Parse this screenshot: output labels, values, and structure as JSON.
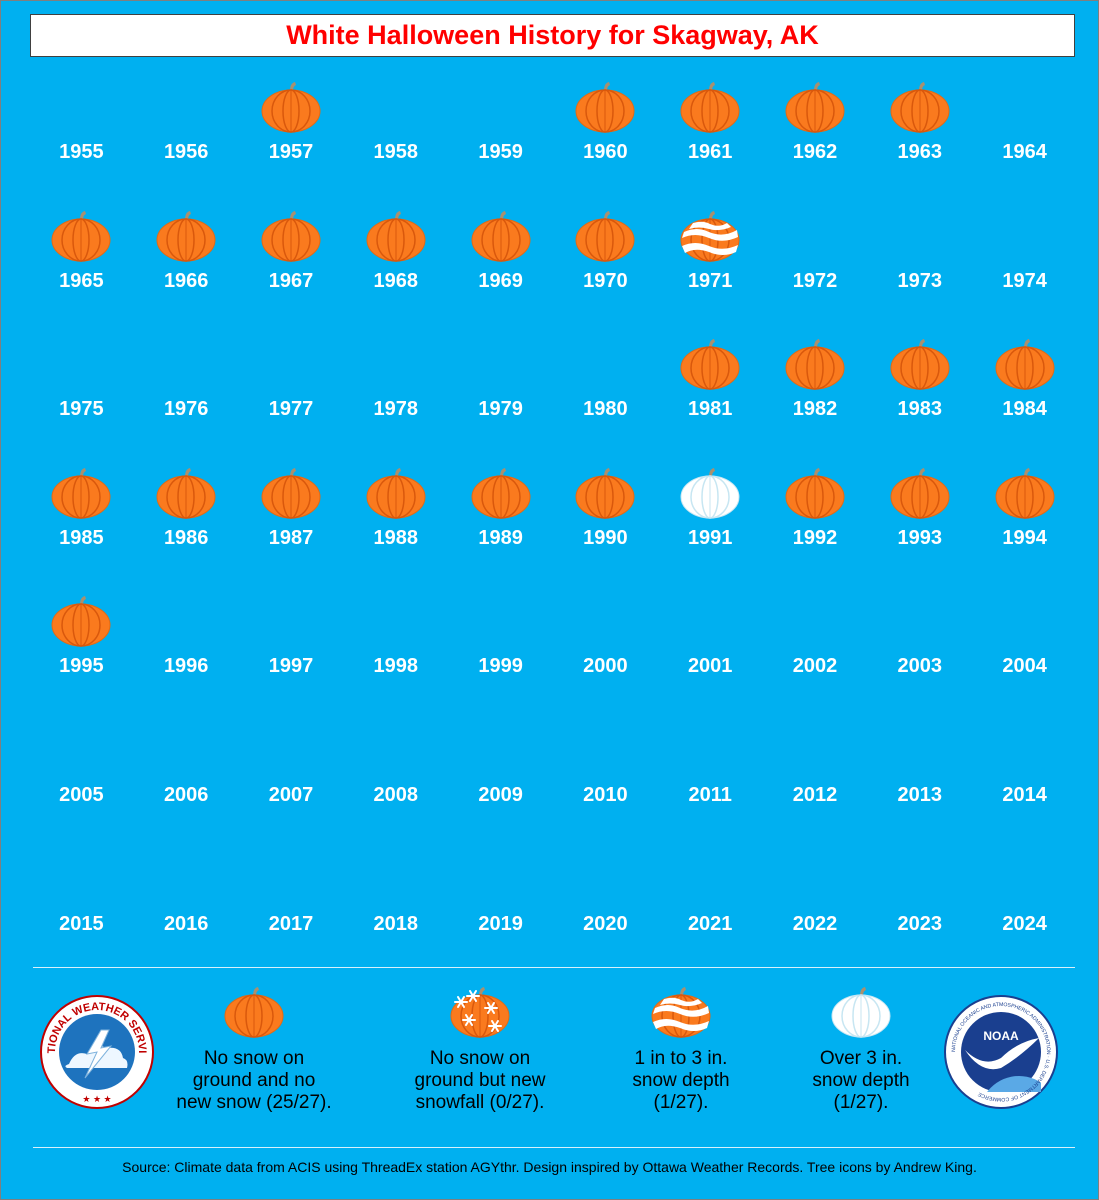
{
  "title": "White Halloween History for Skagway, AK",
  "chart_data": {
    "type": "table",
    "title": "White Halloween History for Skagway, AK",
    "category_key": {
      "no_snow": "No snow on ground and no new snow (25/27).",
      "new_snowfall": "No snow on ground but new snowfall (0/27).",
      "depth_1_3": "1 in to 3 in. snow depth (1/27).",
      "depth_over_3": "Over 3 in. snow depth (1/27)."
    },
    "years": [
      {
        "year": "1955",
        "category": null
      },
      {
        "year": "1956",
        "category": null
      },
      {
        "year": "1957",
        "category": "no_snow"
      },
      {
        "year": "1958",
        "category": null
      },
      {
        "year": "1959",
        "category": null
      },
      {
        "year": "1960",
        "category": "no_snow"
      },
      {
        "year": "1961",
        "category": "no_snow"
      },
      {
        "year": "1962",
        "category": "no_snow"
      },
      {
        "year": "1963",
        "category": "no_snow"
      },
      {
        "year": "1964",
        "category": null
      },
      {
        "year": "1965",
        "category": "no_snow"
      },
      {
        "year": "1966",
        "category": "no_snow"
      },
      {
        "year": "1967",
        "category": "no_snow"
      },
      {
        "year": "1968",
        "category": "no_snow"
      },
      {
        "year": "1969",
        "category": "no_snow"
      },
      {
        "year": "1970",
        "category": "no_snow"
      },
      {
        "year": "1971",
        "category": "depth_1_3"
      },
      {
        "year": "1972",
        "category": null
      },
      {
        "year": "1973",
        "category": null
      },
      {
        "year": "1974",
        "category": null
      },
      {
        "year": "1975",
        "category": null
      },
      {
        "year": "1976",
        "category": null
      },
      {
        "year": "1977",
        "category": null
      },
      {
        "year": "1978",
        "category": null
      },
      {
        "year": "1979",
        "category": null
      },
      {
        "year": "1980",
        "category": null
      },
      {
        "year": "1981",
        "category": "no_snow"
      },
      {
        "year": "1982",
        "category": "no_snow"
      },
      {
        "year": "1983",
        "category": "no_snow"
      },
      {
        "year": "1984",
        "category": "no_snow"
      },
      {
        "year": "1985",
        "category": "no_snow"
      },
      {
        "year": "1986",
        "category": "no_snow"
      },
      {
        "year": "1987",
        "category": "no_snow"
      },
      {
        "year": "1988",
        "category": "no_snow"
      },
      {
        "year": "1989",
        "category": "no_snow"
      },
      {
        "year": "1990",
        "category": "no_snow"
      },
      {
        "year": "1991",
        "category": "depth_over_3"
      },
      {
        "year": "1992",
        "category": "no_snow"
      },
      {
        "year": "1993",
        "category": "no_snow"
      },
      {
        "year": "1994",
        "category": "no_snow"
      },
      {
        "year": "1995",
        "category": "no_snow"
      },
      {
        "year": "1996",
        "category": null
      },
      {
        "year": "1997",
        "category": null
      },
      {
        "year": "1998",
        "category": null
      },
      {
        "year": "1999",
        "category": null
      },
      {
        "year": "2000",
        "category": null
      },
      {
        "year": "2001",
        "category": null
      },
      {
        "year": "2002",
        "category": null
      },
      {
        "year": "2003",
        "category": null
      },
      {
        "year": "2004",
        "category": null
      },
      {
        "year": "2005",
        "category": null
      },
      {
        "year": "2006",
        "category": null
      },
      {
        "year": "2007",
        "category": null
      },
      {
        "year": "2008",
        "category": null
      },
      {
        "year": "2009",
        "category": null
      },
      {
        "year": "2010",
        "category": null
      },
      {
        "year": "2011",
        "category": null
      },
      {
        "year": "2012",
        "category": null
      },
      {
        "year": "2013",
        "category": null
      },
      {
        "year": "2014",
        "category": null
      },
      {
        "year": "2015",
        "category": null
      },
      {
        "year": "2016",
        "category": null
      },
      {
        "year": "2017",
        "category": null
      },
      {
        "year": "2018",
        "category": null
      },
      {
        "year": "2019",
        "category": null
      },
      {
        "year": "2020",
        "category": null
      },
      {
        "year": "2021",
        "category": null
      },
      {
        "year": "2022",
        "category": null
      },
      {
        "year": "2023",
        "category": null
      },
      {
        "year": "2024",
        "category": null
      }
    ]
  },
  "legend": [
    {
      "key": "no_snow",
      "lines": [
        "No snow on",
        "ground and no",
        "new snow (25/27)."
      ]
    },
    {
      "key": "new_snowfall",
      "lines": [
        "No snow on",
        "ground but new",
        "snowfall (0/27)."
      ]
    },
    {
      "key": "depth_1_3",
      "lines": [
        "1 in to 3 in.",
        "snow depth",
        "(1/27)."
      ]
    },
    {
      "key": "depth_over_3",
      "lines": [
        "Over 3 in.",
        "snow depth",
        "(1/27)."
      ]
    }
  ],
  "logos": {
    "nws_text": "NATIONAL WEATHER SERVICE",
    "noaa_text": "NOAA",
    "noaa_ring_text": "NATIONAL OCEANIC AND ATMOSPHERIC ADMINISTRATION · U.S. DEPARTMENT OF COMMERCE"
  },
  "source": "Source: Climate data from ACIS using ThreadEx station AGYthr. Design inspired by Ottawa Weather Records. Tree icons by Andrew King.",
  "colors": {
    "background": "#00b0f0",
    "title": "#ff0000",
    "pumpkin": "#fa7a1e",
    "pumpkin_rib": "#d9580c",
    "stem": "#a89070",
    "snow": "#ffffff",
    "snow_edge": "#c7e6f2"
  },
  "icons": {
    "no_snow": "orange-pumpkin-icon",
    "new_snowfall": "snowflake-pumpkin-icon",
    "depth_1_3": "striped-snow-pumpkin-icon",
    "depth_over_3": "white-pumpkin-icon"
  }
}
